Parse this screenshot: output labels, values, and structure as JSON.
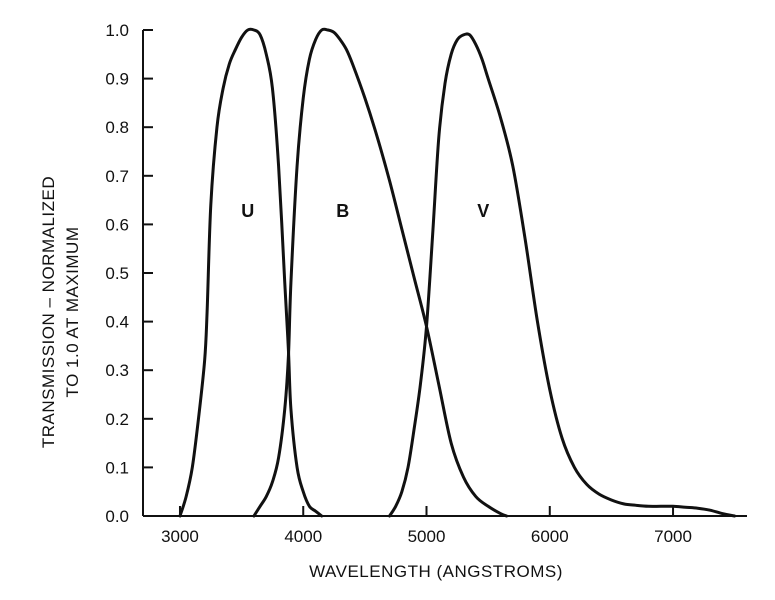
{
  "chart_data": {
    "type": "line",
    "xlabel": "WAVELENGTH (ANGSTROMS)",
    "ylabel": [
      "TRANSMISSION – NORMALIZED",
      "TO 1.0 AT MAXIMUM"
    ],
    "xlim": [
      2700,
      7600
    ],
    "ylim": [
      0,
      1.0
    ],
    "x_ticks": [
      3000,
      4000,
      5000,
      6000,
      7000
    ],
    "y_ticks": [
      0.0,
      0.1,
      0.2,
      0.3,
      0.4,
      0.5,
      0.6,
      0.7,
      0.8,
      0.9,
      1.0
    ],
    "y_tick_labels": [
      "0.0",
      "0.1",
      "0.2",
      "0.3",
      "0.4",
      "0.5",
      "0.6",
      "0.7",
      "0.8",
      "0.9",
      "1.0"
    ],
    "grid": false,
    "series": [
      {
        "name": "U",
        "label_at": [
          3550,
          0.63
        ],
        "x": [
          3000,
          3050,
          3100,
          3150,
          3200,
          3220,
          3250,
          3300,
          3350,
          3400,
          3450,
          3500,
          3550,
          3600,
          3650,
          3700,
          3750,
          3800,
          3850,
          3880,
          3900,
          3950,
          4000,
          4050,
          4100,
          4150
        ],
        "y": [
          0.0,
          0.04,
          0.1,
          0.2,
          0.32,
          0.42,
          0.64,
          0.8,
          0.88,
          0.93,
          0.96,
          0.985,
          1.0,
          1.0,
          0.99,
          0.95,
          0.88,
          0.72,
          0.48,
          0.34,
          0.22,
          0.1,
          0.05,
          0.02,
          0.01,
          0.0
        ]
      },
      {
        "name": "B",
        "label_at": [
          4320,
          0.63
        ],
        "x": [
          3600,
          3650,
          3700,
          3750,
          3800,
          3850,
          3880,
          3900,
          3950,
          4000,
          4050,
          4100,
          4150,
          4200,
          4250,
          4300,
          4350,
          4400,
          4500,
          4600,
          4700,
          4800,
          4900,
          5000,
          5100,
          5200,
          5300,
          5400,
          5500,
          5600,
          5650
        ],
        "y": [
          0.0,
          0.02,
          0.04,
          0.07,
          0.12,
          0.22,
          0.33,
          0.48,
          0.72,
          0.86,
          0.94,
          0.98,
          1.0,
          1.0,
          0.995,
          0.98,
          0.96,
          0.93,
          0.86,
          0.78,
          0.69,
          0.59,
          0.49,
          0.39,
          0.27,
          0.15,
          0.08,
          0.04,
          0.02,
          0.005,
          0.0
        ]
      },
      {
        "name": "V",
        "label_at": [
          5460,
          0.63
        ],
        "x": [
          4700,
          4750,
          4800,
          4850,
          4900,
          4950,
          5000,
          5050,
          5100,
          5150,
          5200,
          5250,
          5300,
          5350,
          5400,
          5450,
          5500,
          5600,
          5700,
          5800,
          5900,
          6000,
          6100,
          6200,
          6300,
          6400,
          6500,
          6600,
          6700,
          6800,
          6900,
          7000,
          7100,
          7200,
          7300,
          7400,
          7500
        ],
        "y": [
          0.0,
          0.02,
          0.05,
          0.1,
          0.18,
          0.27,
          0.39,
          0.58,
          0.78,
          0.89,
          0.95,
          0.98,
          0.99,
          0.99,
          0.97,
          0.94,
          0.9,
          0.82,
          0.72,
          0.57,
          0.4,
          0.26,
          0.16,
          0.1,
          0.065,
          0.045,
          0.033,
          0.025,
          0.022,
          0.02,
          0.02,
          0.02,
          0.018,
          0.016,
          0.012,
          0.005,
          0.0
        ]
      }
    ]
  }
}
